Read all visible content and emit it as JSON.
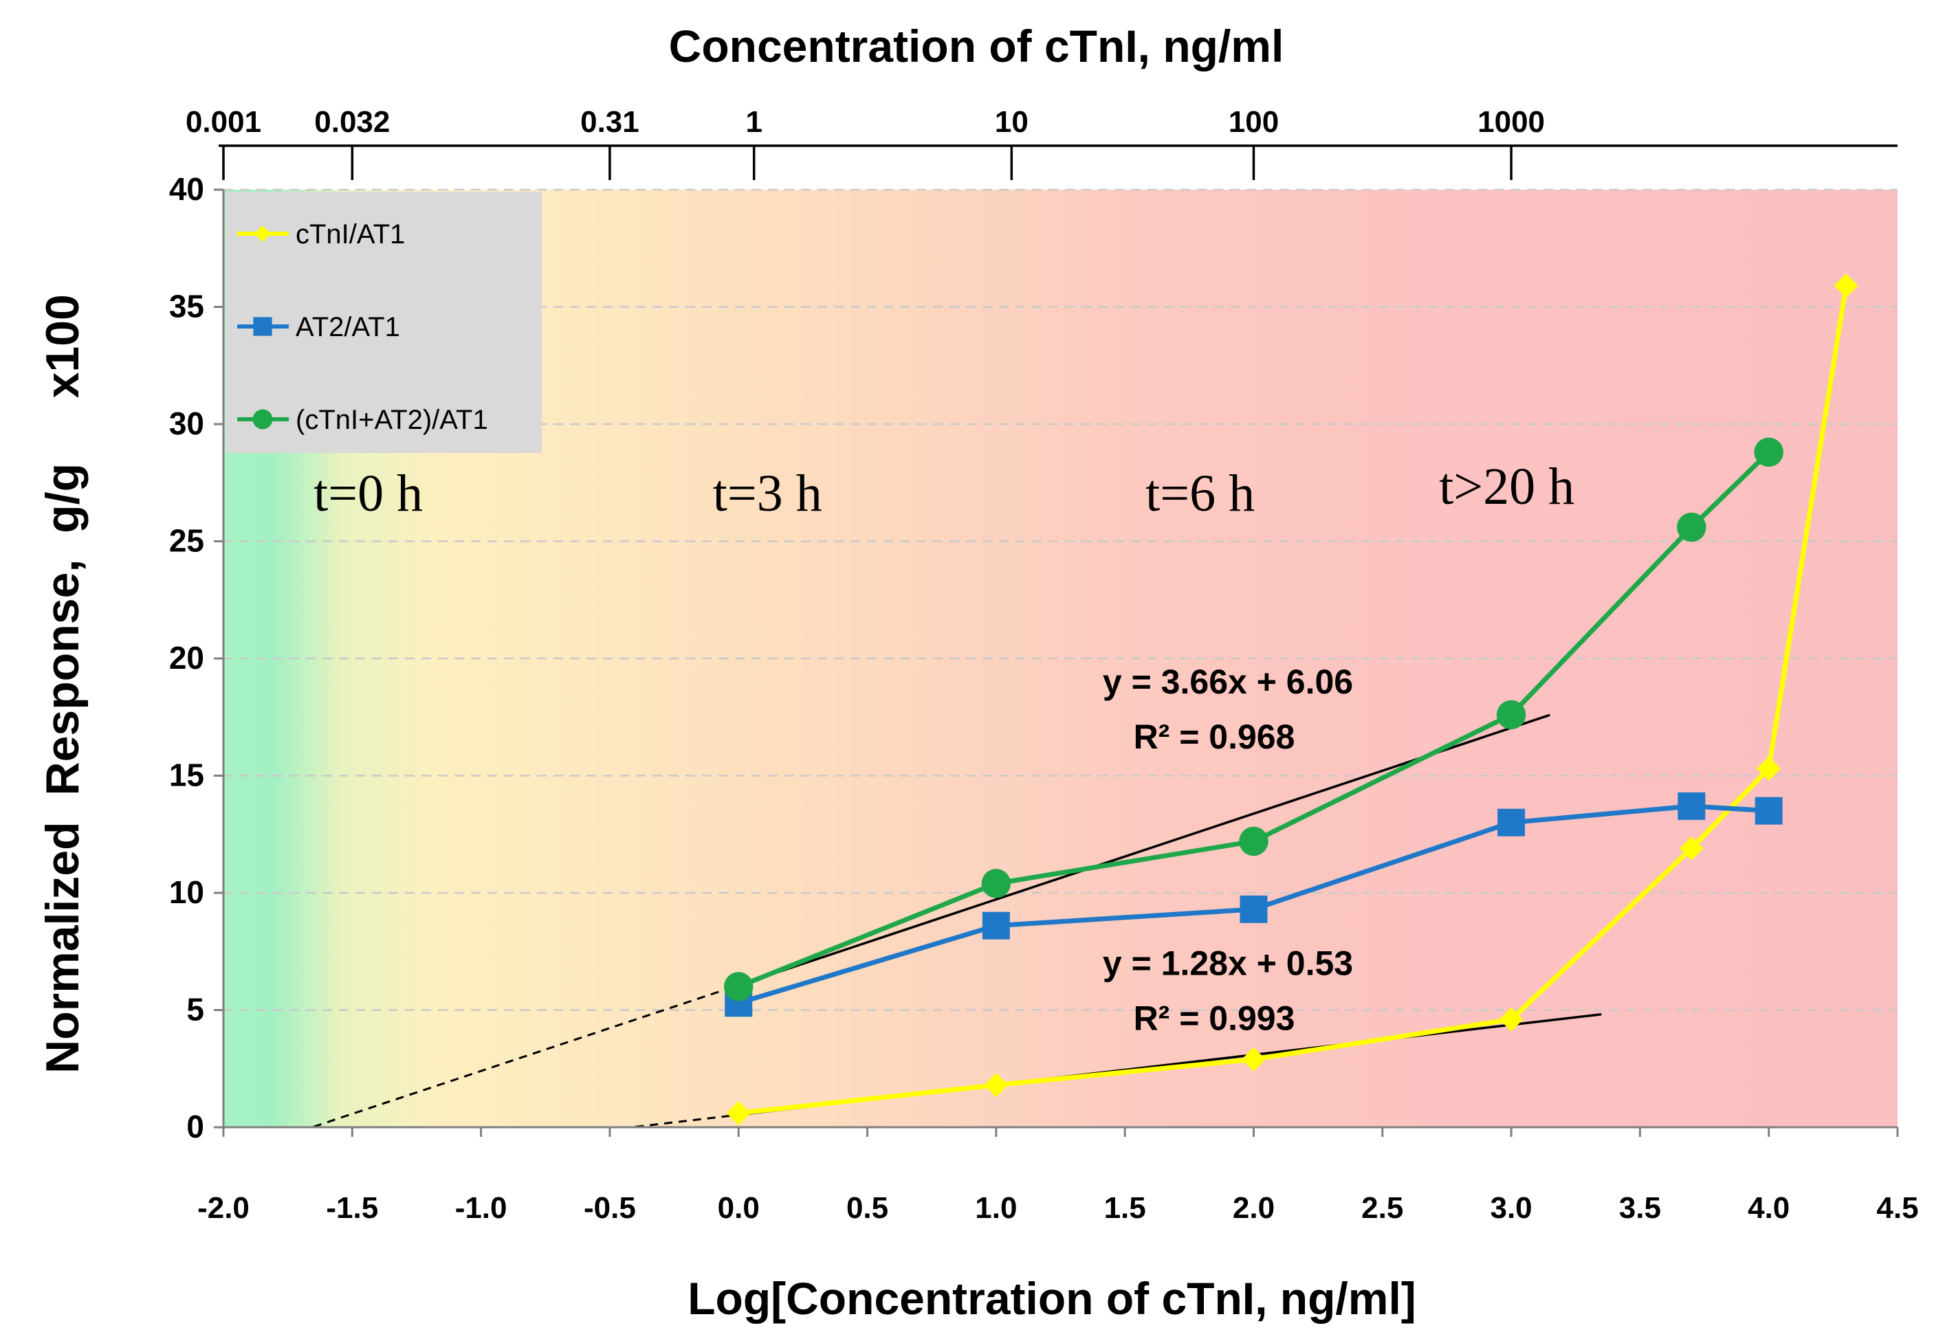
{
  "chart_data": {
    "type": "line",
    "xlabel": "Log[Concentration of cTnI, ng/ml]",
    "ylabel": "Normalized  Response,  g/g     x100",
    "top_axis_title": "Concentration of cTnI, ng/ml",
    "xlim": [
      -2.0,
      4.5
    ],
    "ylim": [
      0,
      40
    ],
    "x_ticks": [
      -2.0,
      -1.5,
      -1.0,
      -0.5,
      0.0,
      0.5,
      1.0,
      1.5,
      2.0,
      2.5,
      3.0,
      3.5,
      4.0,
      4.5
    ],
    "x_tick_labels": [
      "-2.0",
      "-1.5",
      "-1.0",
      "-0.5",
      "0.0",
      "0.5",
      "1.0",
      "1.5",
      "2.0",
      "2.5",
      "3.0",
      "3.5",
      "4.0",
      "4.5"
    ],
    "y_ticks": [
      0,
      5,
      10,
      15,
      20,
      25,
      30,
      35,
      40
    ],
    "y_tick_labels": [
      "0",
      "5",
      "10",
      "15",
      "20",
      "25",
      "30",
      "35",
      "40"
    ],
    "top_ticks": [
      {
        "label": "0.001",
        "x": -2.0
      },
      {
        "label": "0.032",
        "x": -1.5
      },
      {
        "label": "0.31",
        "x": -0.5
      },
      {
        "label": "1",
        "x": 0.06
      },
      {
        "label": "10",
        "x": 1.06
      },
      {
        "label": "100",
        "x": 2.0
      },
      {
        "label": "1000",
        "x": 3.0
      }
    ],
    "grid": "horizontal dashed",
    "legend_position": "top-left",
    "series": [
      {
        "name": "cTnI/AT1",
        "color": "#ffff00",
        "marker": "diamond",
        "x": [
          0.0,
          1.0,
          2.0,
          3.0,
          3.7,
          4.0,
          4.3
        ],
        "y": [
          0.6,
          1.8,
          2.9,
          4.6,
          11.9,
          15.3,
          35.9
        ]
      },
      {
        "name": "AT2/AT1",
        "color": "#1f78c8",
        "marker": "square",
        "x": [
          0.0,
          1.0,
          2.0,
          3.0,
          3.7,
          4.0
        ],
        "y": [
          5.3,
          8.6,
          9.3,
          13.0,
          13.7,
          13.5
        ]
      },
      {
        "name": "(cTnI+AT2)/AT1",
        "color": "#1fa84a",
        "marker": "circle",
        "x": [
          0.0,
          1.0,
          2.0,
          3.0,
          3.7,
          4.0
        ],
        "y": [
          6.0,
          10.4,
          12.2,
          17.6,
          25.6,
          28.8
        ]
      }
    ],
    "trendlines": [
      {
        "slope": 3.66,
        "intercept": 6.06,
        "solid_x": [
          0.0,
          3.15
        ],
        "dashed_x": [
          -1.65,
          0.0
        ],
        "equation": "y = 3.66x + 6.06",
        "r2": "R² = 0.968",
        "label_at": [
          1.9,
          18.5
        ]
      },
      {
        "slope": 1.28,
        "intercept": 0.53,
        "solid_x": [
          0.0,
          3.35
        ],
        "dashed_x": [
          -0.4,
          0.0
        ],
        "equation": "y = 1.28x + 0.53",
        "r2": "R² = 0.993",
        "label_at": [
          1.9,
          6.5
        ]
      }
    ],
    "region_labels": [
      {
        "text": "t=0 h",
        "x": -1.65,
        "y": 26.3
      },
      {
        "text": "t=3 h",
        "x": -0.1,
        "y": 26.3
      },
      {
        "text": "t=6 h",
        "x": 1.58,
        "y": 26.3
      },
      {
        "text": "t>20 h",
        "x": 2.72,
        "y": 26.6
      }
    ],
    "background_gradient": [
      "#a3f0c2",
      "#fdeec0",
      "#fcd9c0",
      "#fbc4c1",
      "#fac0c0"
    ]
  }
}
